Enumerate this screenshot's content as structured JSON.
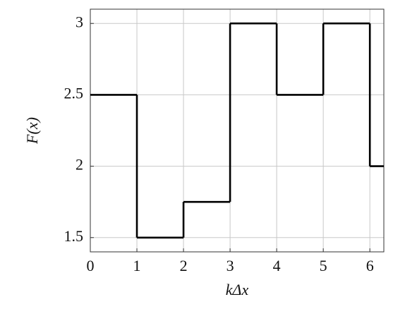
{
  "chart_data": {
    "type": "step",
    "x_label": "kΔx",
    "y_label": "F(x)",
    "x": [
      0,
      1,
      2,
      3,
      4,
      5,
      6
    ],
    "values": [
      2.5,
      1.5,
      1.75,
      3,
      2.5,
      3,
      2
    ],
    "color": "#000000",
    "xlim": [
      0,
      6.3
    ],
    "ylim": [
      1.4,
      3.1
    ],
    "xticks": [
      0,
      1,
      2,
      3,
      4,
      5,
      6
    ],
    "yticks": [
      1.5,
      2,
      2.5,
      3
    ],
    "grid": true
  }
}
